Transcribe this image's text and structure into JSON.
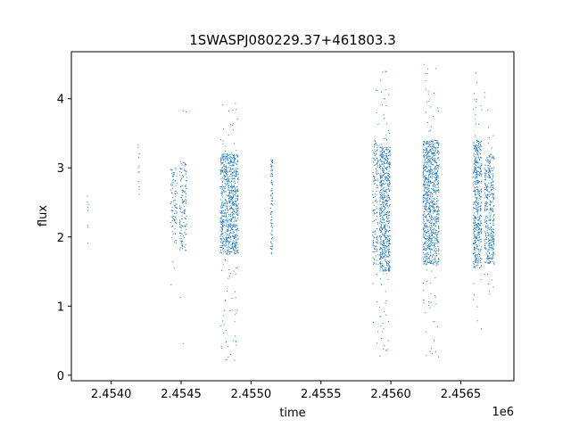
{
  "chart_data": {
    "type": "scatter",
    "title": "1SWASPJ080229.37+461803.3",
    "xlabel": "time",
    "ylabel": "flux",
    "x_offset_label": "1e6",
    "xlim": [
      2453715,
      2456880
    ],
    "ylim": [
      -0.08,
      4.68
    ],
    "x_tick_values": [
      2454000,
      2454500,
      2455000,
      2455500,
      2456000,
      2456500
    ],
    "x_tick_labels": [
      "2.4540",
      "2.4545",
      "2.4550",
      "2.4555",
      "2.4560",
      "2.4565"
    ],
    "y_tick_values": [
      0,
      1,
      2,
      3,
      4
    ],
    "y_tick_labels": [
      "0",
      "1",
      "2",
      "3",
      "4"
    ],
    "grid": false,
    "marker_color": "#1f77b4",
    "clusters": [
      {
        "x": [
          2453827,
          2453836
        ],
        "y_core": [
          1.8,
          2.8
        ],
        "y_full": [
          1.7,
          2.85
        ],
        "n": 8
      },
      {
        "x": [
          2454190,
          2454202
        ],
        "y_core": [
          2.6,
          3.4
        ],
        "y_full": [
          2.55,
          3.75
        ],
        "n": 12
      },
      {
        "x": [
          2454425,
          2454470
        ],
        "y_core": [
          1.9,
          3.0
        ],
        "y_full": [
          1.1,
          3.5
        ],
        "n": 90
      },
      {
        "x": [
          2454490,
          2454540
        ],
        "y_core": [
          1.8,
          3.1
        ],
        "y_full": [
          0.26,
          3.95
        ],
        "n": 140
      },
      {
        "x": [
          2454780,
          2454910
        ],
        "y_core": [
          1.75,
          3.2
        ],
        "y_full": [
          0.2,
          3.95
        ],
        "n": 900
      },
      {
        "x": [
          2455140,
          2455155
        ],
        "y_core": [
          1.75,
          3.15
        ],
        "y_full": [
          1.7,
          3.3
        ],
        "n": 90
      },
      {
        "x": [
          2455870,
          2455910
        ],
        "y_core": [
          1.6,
          3.4
        ],
        "y_full": [
          0.22,
          4.45
        ],
        "n": 160
      },
      {
        "x": [
          2455920,
          2455995
        ],
        "y_core": [
          1.5,
          3.3
        ],
        "y_full": [
          0.15,
          4.45
        ],
        "n": 700
      },
      {
        "x": [
          2456230,
          2456345
        ],
        "y_core": [
          1.6,
          3.4
        ],
        "y_full": [
          0.14,
          4.5
        ],
        "n": 1000
      },
      {
        "x": [
          2456590,
          2456650
        ],
        "y_core": [
          1.55,
          3.4
        ],
        "y_full": [
          0.65,
          4.5
        ],
        "n": 500
      },
      {
        "x": [
          2456670,
          2456740
        ],
        "y_core": [
          1.6,
          3.2
        ],
        "y_full": [
          1.1,
          4.3
        ],
        "n": 400
      }
    ]
  }
}
